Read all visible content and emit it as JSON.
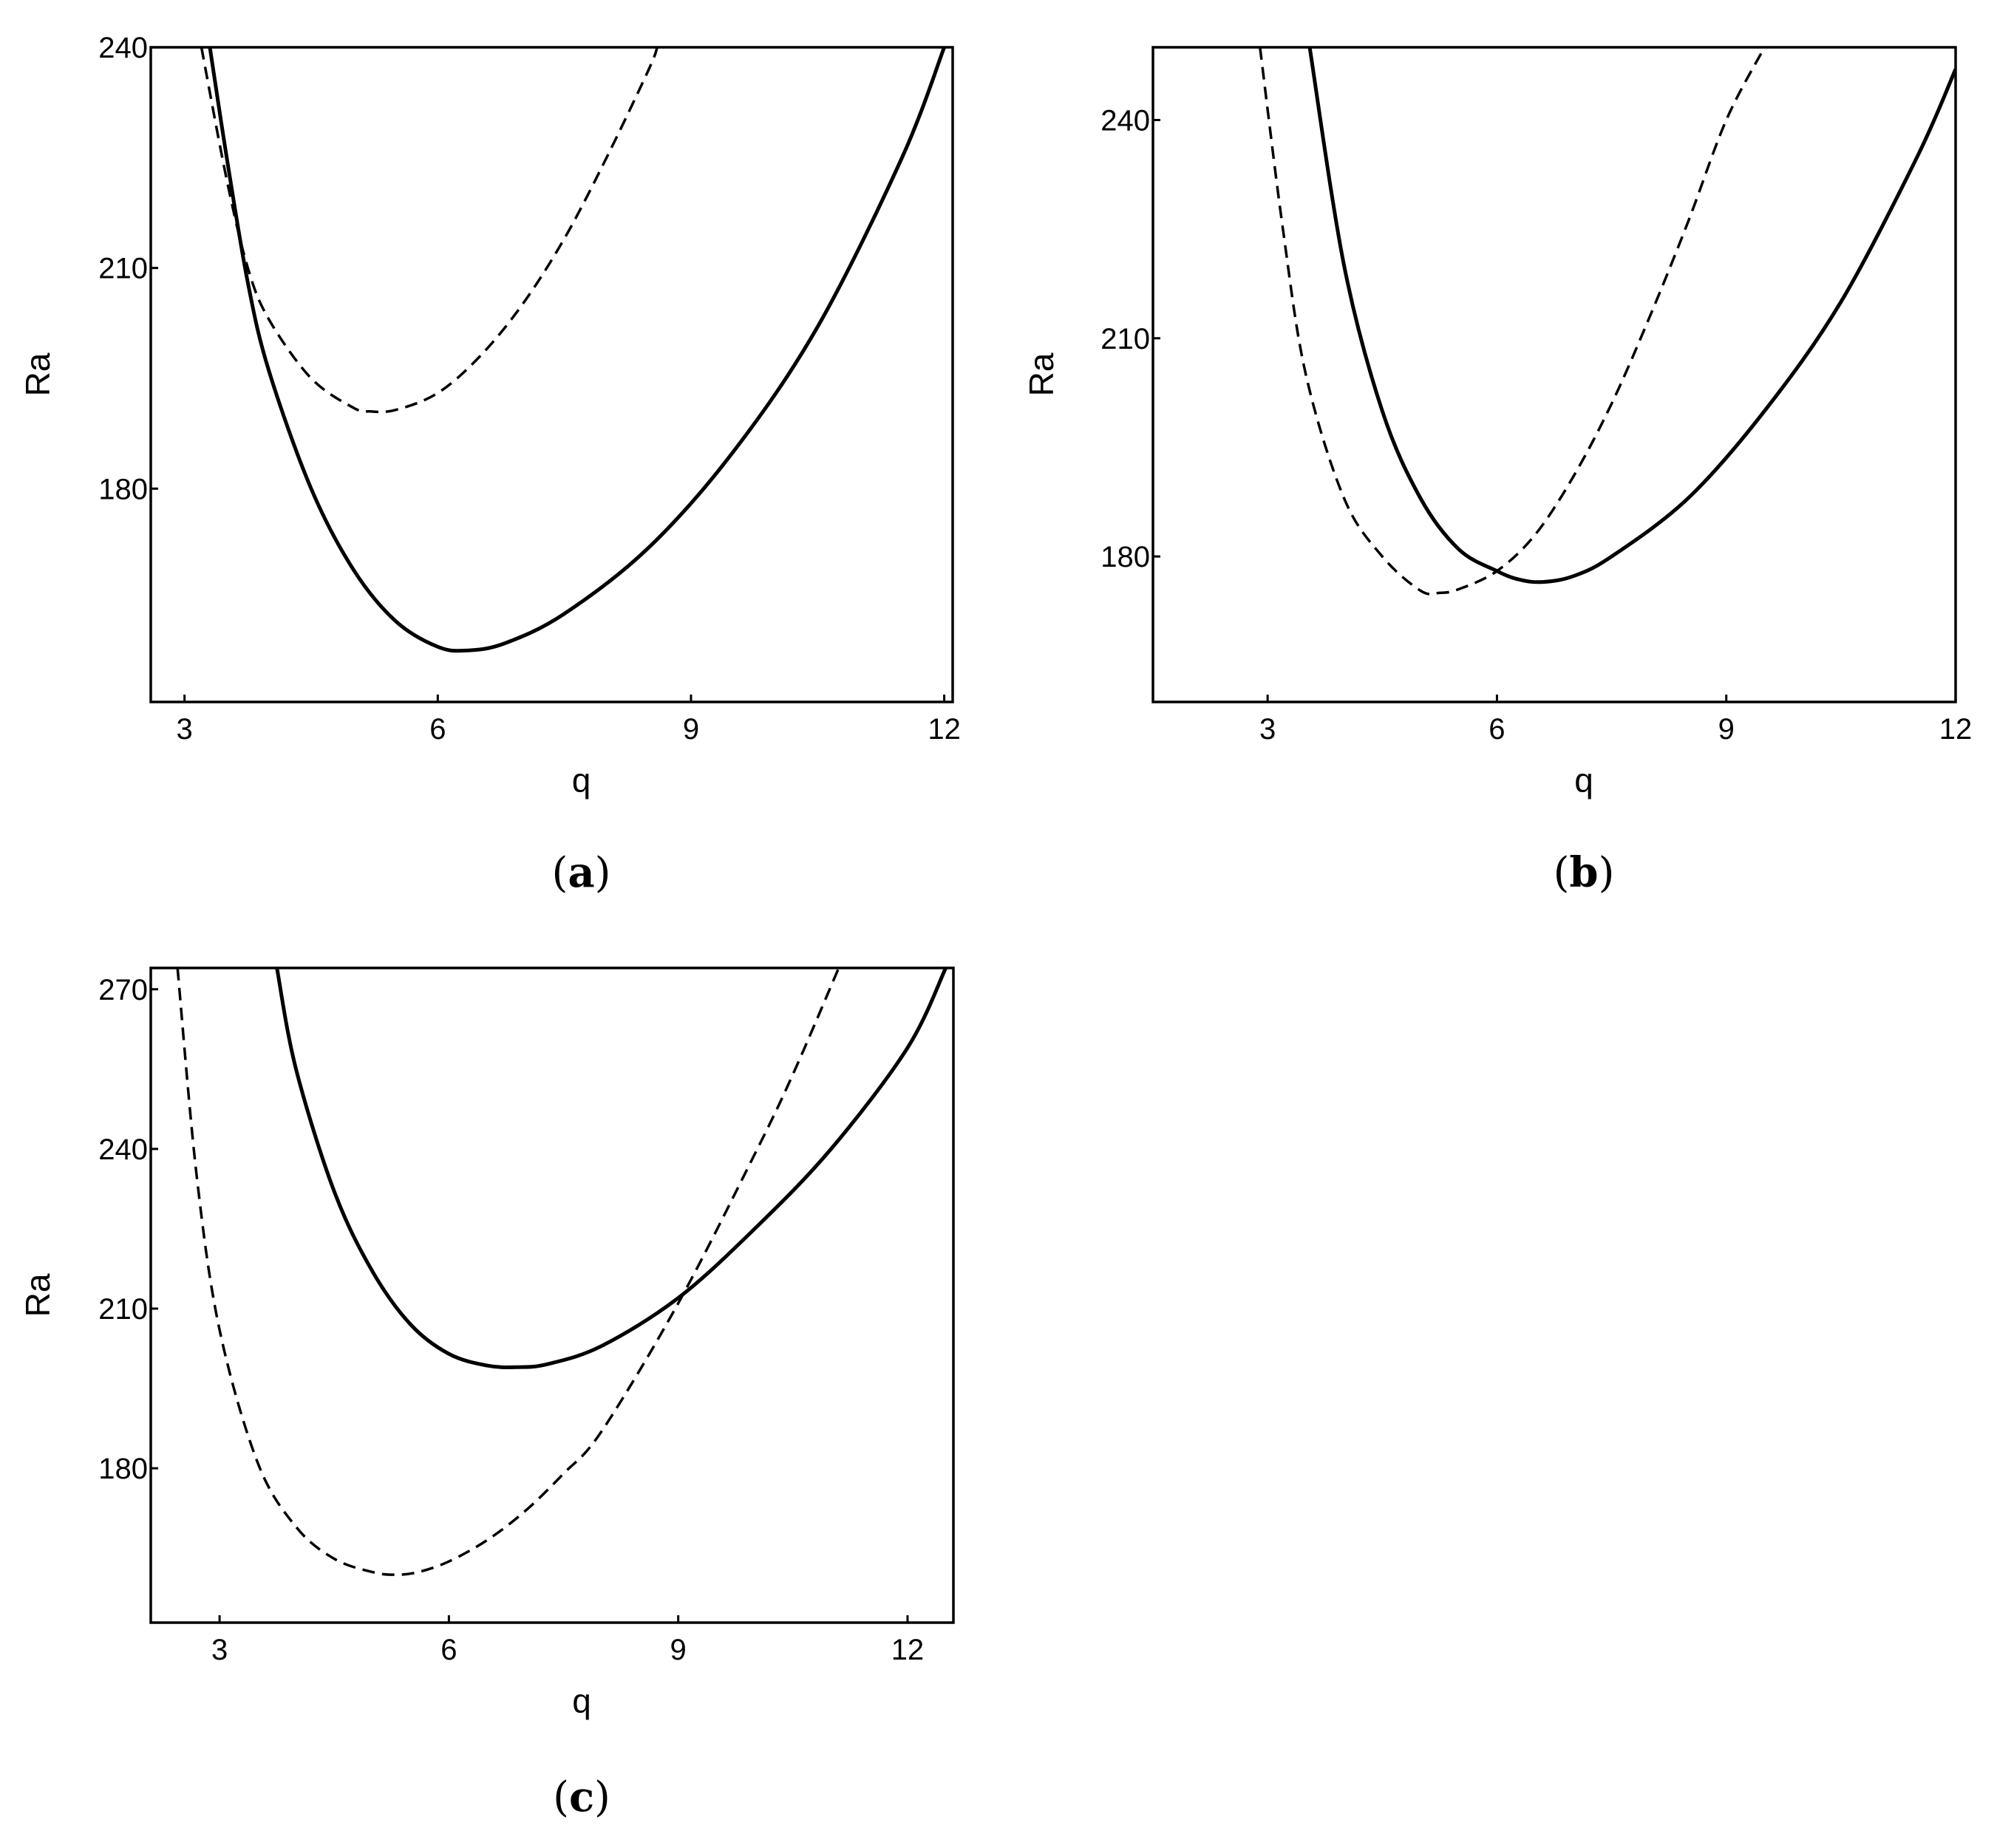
{
  "chart_data": [
    {
      "type": "line",
      "panel_caption": "(a)",
      "panel_letter": "a",
      "xlabel": "q",
      "ylabel": "Ra",
      "xlim": [
        2.6,
        12.1
      ],
      "ylim": [
        151,
        240
      ],
      "xticks": [
        3,
        6,
        9,
        12
      ],
      "yticks": [
        180,
        210,
        240
      ],
      "grid": false,
      "series": [
        {
          "style": "solid",
          "x": [
            3.3,
            3.5,
            3.75,
            4.0,
            4.5,
            5.0,
            5.5,
            6.0,
            6.35,
            6.8,
            7.5,
            8.5,
            9.5,
            10.5,
            11.5,
            12.0
          ],
          "y": [
            240,
            225,
            208,
            196,
            180,
            169,
            162,
            158.5,
            158,
            159,
            163,
            172,
            185,
            202,
            225,
            240
          ]
        },
        {
          "style": "dashed",
          "x": [
            3.2,
            3.5,
            3.75,
            4.0,
            4.5,
            5.0,
            5.2,
            5.5,
            6.0,
            6.5,
            7.0,
            7.5,
            8.0,
            8.5,
            8.6
          ],
          "y": [
            240,
            222,
            210,
            203,
            195,
            191,
            190.5,
            190.7,
            193,
            198,
            205,
            214,
            225,
            237,
            240
          ]
        }
      ]
    },
    {
      "type": "line",
      "panel_caption": "(b)",
      "panel_letter": "b",
      "xlabel": "q",
      "ylabel": "Ra",
      "xlim": [
        1.5,
        12
      ],
      "ylim": [
        160,
        250
      ],
      "xticks": [
        3,
        6,
        9,
        12
      ],
      "yticks": [
        180,
        210,
        240
      ],
      "grid": false,
      "series": [
        {
          "style": "solid",
          "x": [
            3.55,
            4.0,
            4.5,
            5.0,
            5.5,
            6.0,
            6.3,
            6.6,
            7.0,
            7.5,
            8.5,
            9.5,
            10.5,
            11.5,
            12.0
          ],
          "y": [
            250,
            220,
            200,
            188,
            181,
            178,
            176.8,
            176.5,
            177.3,
            180,
            188,
            200,
            215,
            235,
            247
          ]
        },
        {
          "style": "dashed",
          "x": [
            2.9,
            3.2,
            3.5,
            4.0,
            4.5,
            5.0,
            5.25,
            5.5,
            6.0,
            6.5,
            7.0,
            7.5,
            8.0,
            8.5,
            9.0,
            9.5
          ],
          "y": [
            250,
            225,
            205,
            188,
            180,
            175.3,
            175,
            175.5,
            178,
            183,
            191,
            201,
            213,
            226,
            240,
            250
          ]
        }
      ]
    },
    {
      "type": "line",
      "panel_caption": "(c)",
      "panel_letter": "c",
      "xlabel": "q",
      "ylabel": "Ra",
      "xlim": [
        2.1,
        12.6
      ],
      "ylim": [
        151,
        274
      ],
      "xticks": [
        3,
        6,
        9,
        12
      ],
      "yticks": [
        180,
        210,
        240,
        270
      ],
      "grid": false,
      "series": [
        {
          "style": "solid",
          "x": [
            3.75,
            4.0,
            4.5,
            5.0,
            5.5,
            6.0,
            6.5,
            6.9,
            7.3,
            8.0,
            9.0,
            10.0,
            11.0,
            12.0,
            12.5
          ],
          "y": [
            274,
            255,
            232,
            217,
            207,
            201.5,
            199.3,
            199,
            199.6,
            203,
            212,
            225,
            240,
            259,
            274
          ]
        },
        {
          "style": "dashed",
          "x": [
            2.45,
            2.7,
            3.0,
            3.5,
            4.0,
            4.5,
            5.0,
            5.3,
            5.6,
            6.0,
            6.5,
            7.0,
            7.5,
            8.0,
            9.0,
            10.0,
            10.5,
            11.1
          ],
          "y": [
            274,
            235,
            206,
            181,
            169,
            163,
            160.5,
            160,
            160.5,
            162.5,
            166.5,
            172,
            179,
            187,
            211,
            239,
            254,
            274
          ]
        }
      ]
    }
  ]
}
